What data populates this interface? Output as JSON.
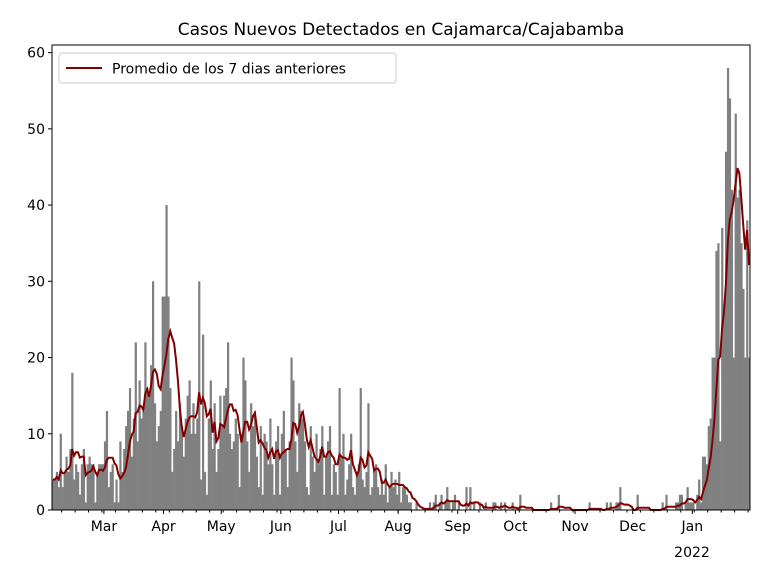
{
  "chart_data": {
    "type": "bar",
    "title": "Casos Nuevos Detectados en Cajamarca/Cajabamba",
    "xlabel": "",
    "ylabel": "",
    "ylim": [
      0,
      61
    ],
    "yticks": [
      0,
      10,
      20,
      30,
      40,
      50,
      60
    ],
    "start_date": "2021-02-02",
    "month_ticks": [
      {
        "label": "Mar",
        "index": 27
      },
      {
        "label": "Apr",
        "index": 58
      },
      {
        "label": "May",
        "index": 88
      },
      {
        "label": "Jun",
        "index": 119
      },
      {
        "label": "Jul",
        "index": 149
      },
      {
        "label": "Aug",
        "index": 180
      },
      {
        "label": "Sep",
        "index": 211
      },
      {
        "label": "Oct",
        "index": 241
      },
      {
        "label": "Nov",
        "index": 272
      },
      {
        "label": "Dec",
        "index": 302
      },
      {
        "label": "Jan",
        "index": 333
      }
    ],
    "year_label": "2022",
    "legend": {
      "label": "Promedio de los 7 dias anteriores",
      "placement": "top-left"
    },
    "bar_color": "#808080",
    "line_color": "#800000",
    "moving_average_window": 7,
    "daily_cases": [
      4,
      4,
      5,
      3,
      10,
      3,
      5,
      7,
      5,
      8,
      18,
      4,
      6,
      5,
      2,
      6,
      8,
      1,
      6,
      7,
      6,
      6,
      1,
      5,
      6,
      6,
      6,
      9,
      13,
      3,
      5,
      6,
      1,
      4,
      1,
      9,
      5,
      8,
      11,
      13,
      16,
      7,
      12,
      22,
      9,
      17,
      12,
      13,
      22,
      16,
      15,
      19,
      30,
      14,
      9,
      11,
      13,
      28,
      28,
      40,
      28,
      16,
      5,
      8,
      13,
      9,
      14,
      11,
      7,
      12,
      15,
      17,
      10,
      14,
      10,
      12,
      30,
      4,
      23,
      5,
      2,
      12,
      17,
      8,
      14,
      5,
      8,
      15,
      11,
      15,
      16,
      22,
      10,
      8,
      9,
      12,
      10,
      3,
      10,
      20,
      17,
      9,
      5,
      14,
      11,
      13,
      7,
      3,
      11,
      2,
      10,
      9,
      6,
      12,
      6,
      2,
      9,
      11,
      2,
      10,
      13,
      8,
      3,
      9,
      20,
      17,
      9,
      5,
      14,
      13,
      12,
      9,
      3,
      2,
      11,
      7,
      5,
      10,
      6,
      8,
      11,
      2,
      7,
      9,
      11,
      2,
      6,
      5,
      2,
      16,
      7,
      10,
      2,
      4,
      6,
      10,
      3,
      2,
      5,
      6,
      16,
      4,
      3,
      5,
      14,
      2,
      3,
      5,
      6,
      3,
      2,
      4,
      2,
      6,
      1,
      3,
      5,
      3,
      4,
      2,
      5,
      1,
      3,
      3,
      2,
      1,
      1,
      0,
      0,
      1,
      0,
      0,
      0,
      0,
      0,
      0,
      1,
      0,
      1,
      2,
      0,
      1,
      2,
      0,
      1,
      3,
      1,
      0,
      1,
      2,
      0,
      1,
      0,
      0,
      0,
      3,
      0,
      3,
      0,
      1,
      0,
      0,
      1,
      0,
      0,
      1,
      0,
      0,
      0,
      1,
      1,
      0,
      0,
      1,
      0,
      1,
      0,
      0,
      0,
      1,
      0,
      0,
      0,
      2,
      0,
      0,
      0,
      0,
      0,
      0,
      0,
      0,
      0,
      0,
      0,
      0,
      0,
      0,
      0,
      1,
      0,
      0,
      0,
      2,
      0,
      0,
      0,
      0,
      0,
      0,
      0,
      0,
      0,
      0,
      0,
      0,
      0,
      0,
      0,
      1,
      0,
      0,
      0,
      0,
      0,
      0,
      0,
      0,
      1,
      0,
      1,
      0,
      0,
      1,
      1,
      3,
      0,
      0,
      0,
      0,
      0,
      0,
      0,
      0,
      2,
      0,
      0,
      0,
      0,
      0,
      0,
      0,
      0,
      0,
      0,
      0,
      0,
      1,
      0,
      2,
      0,
      0,
      0,
      0,
      1,
      1,
      2,
      2,
      0,
      1,
      3,
      1,
      1,
      1,
      0,
      2,
      4,
      1,
      7,
      7,
      6,
      11,
      12,
      20,
      20,
      34,
      35,
      9,
      37,
      27,
      47,
      58,
      54,
      42,
      20,
      52,
      41,
      42,
      35,
      29,
      20,
      38,
      20
    ]
  }
}
